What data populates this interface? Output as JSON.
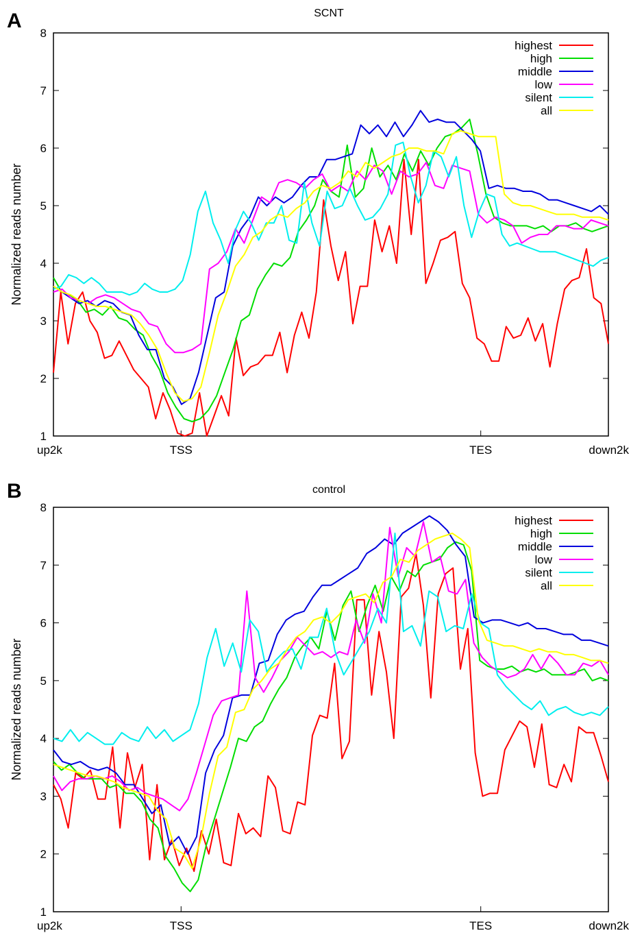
{
  "figure": {
    "panel_labels": [
      "A",
      "B"
    ]
  },
  "chart_data": [
    {
      "type": "line",
      "panel": "A",
      "title": "SCNT",
      "xlabel": "",
      "ylabel": "Normalized reads number",
      "ylim": [
        1,
        8
      ],
      "yticks": [
        1,
        2,
        3,
        4,
        5,
        6,
        7,
        8
      ],
      "xlim": [
        0,
        100
      ],
      "xticks": [
        {
          "value": 0,
          "label": "up2k"
        },
        {
          "value": 23,
          "label": "TSS"
        },
        {
          "value": 77,
          "label": "TES"
        },
        {
          "value": 100,
          "label": "down2k"
        }
      ],
      "legend_position": "top-right",
      "grid": false,
      "series": [
        {
          "name": "highest",
          "color": "#ff0000",
          "values": [
            2.1,
            3.5,
            2.6,
            3.3,
            3.5,
            3.0,
            2.8,
            2.35,
            2.4,
            2.65,
            2.4,
            2.15,
            2.0,
            1.85,
            1.3,
            1.75,
            1.45,
            1.05,
            0.95,
            1.05,
            1.75,
            0.95,
            1.35,
            1.7,
            1.35,
            2.7,
            2.05,
            2.2,
            2.25,
            2.4,
            2.4,
            2.8,
            2.1,
            2.75,
            3.15,
            2.7,
            3.5,
            5.1,
            4.3,
            3.7,
            4.2,
            2.95,
            3.6,
            3.6,
            4.75,
            4.2,
            4.65,
            4.0,
            5.8,
            4.5,
            5.8,
            3.65,
            4.0,
            4.4,
            4.45,
            4.55,
            3.65,
            3.4,
            2.7,
            2.6,
            2.3,
            2.3,
            2.9,
            2.7,
            2.75,
            3.05,
            2.65,
            2.95,
            2.2,
            2.95,
            3.55,
            3.7,
            3.75,
            4.25,
            3.4,
            3.3,
            2.6
          ]
        },
        {
          "name": "high",
          "color": "#00dd00",
          "values": [
            3.75,
            3.5,
            3.45,
            3.35,
            3.15,
            3.2,
            3.1,
            3.25,
            3.05,
            3.0,
            2.85,
            2.75,
            2.4,
            2.15,
            1.75,
            1.5,
            1.3,
            1.25,
            1.3,
            1.45,
            1.7,
            2.1,
            2.5,
            3.0,
            3.1,
            3.55,
            3.8,
            4.0,
            3.95,
            4.1,
            4.55,
            4.75,
            5.0,
            5.45,
            5.25,
            5.15,
            6.05,
            5.15,
            5.3,
            6.0,
            5.5,
            5.7,
            5.45,
            5.9,
            5.6,
            5.95,
            5.7,
            6.0,
            6.2,
            6.25,
            6.35,
            6.5,
            5.9,
            5.2,
            4.8,
            4.7,
            4.65,
            4.65,
            4.65,
            4.6,
            4.65,
            4.55,
            4.65,
            4.65,
            4.7,
            4.6,
            4.55,
            4.6,
            4.65
          ]
        },
        {
          "name": "middle",
          "color": "#0000dd",
          "values": [
            3.6,
            3.5,
            3.4,
            3.3,
            3.35,
            3.25,
            3.35,
            3.3,
            3.15,
            3.1,
            2.75,
            2.5,
            2.5,
            2.0,
            1.85,
            1.55,
            1.65,
            2.1,
            2.75,
            3.4,
            3.5,
            4.3,
            4.6,
            4.8,
            5.15,
            5.0,
            5.15,
            5.05,
            5.15,
            5.35,
            5.5,
            5.5,
            5.8,
            5.8,
            5.85,
            5.9,
            6.4,
            6.25,
            6.4,
            6.2,
            6.45,
            6.2,
            6.4,
            6.65,
            6.45,
            6.5,
            6.45,
            6.45,
            6.3,
            6.15,
            5.95,
            5.3,
            5.35,
            5.3,
            5.3,
            5.25,
            5.25,
            5.2,
            5.1,
            5.1,
            5.05,
            5.0,
            4.95,
            4.9,
            5.0,
            4.85
          ]
        },
        {
          "name": "low",
          "color": "#ff00ff",
          "values": [
            3.5,
            3.55,
            3.4,
            3.35,
            3.3,
            3.4,
            3.45,
            3.4,
            3.3,
            3.2,
            3.15,
            2.95,
            2.9,
            2.6,
            2.45,
            2.45,
            2.5,
            2.6,
            3.9,
            4.0,
            4.2,
            4.6,
            4.35,
            4.75,
            5.15,
            5.05,
            5.4,
            5.45,
            5.4,
            5.3,
            5.45,
            5.55,
            5.25,
            5.35,
            5.25,
            5.6,
            5.45,
            5.7,
            5.6,
            5.2,
            5.6,
            5.5,
            5.55,
            5.75,
            5.35,
            5.3,
            5.7,
            5.65,
            5.6,
            4.85,
            4.7,
            4.8,
            4.75,
            4.65,
            4.35,
            4.45,
            4.5,
            4.5,
            4.65,
            4.65,
            4.6,
            4.6,
            4.75,
            4.7,
            4.65
          ]
        },
        {
          "name": "silent",
          "color": "#00eeee",
          "values": [
            3.55,
            3.6,
            3.8,
            3.75,
            3.65,
            3.75,
            3.65,
            3.5,
            3.5,
            3.5,
            3.45,
            3.5,
            3.65,
            3.55,
            3.5,
            3.5,
            3.55,
            3.7,
            4.15,
            4.9,
            5.25,
            4.7,
            4.4,
            4.0,
            4.6,
            4.9,
            4.7,
            4.4,
            4.7,
            4.7,
            5.0,
            4.4,
            4.35,
            5.4,
            4.7,
            4.3,
            5.25,
            4.95,
            5.0,
            5.3,
            5.0,
            4.75,
            4.8,
            4.95,
            5.2,
            6.05,
            6.1,
            5.5,
            5.05,
            5.35,
            5.95,
            5.85,
            5.5,
            5.85,
            5.0,
            4.45,
            4.9,
            5.2,
            5.15,
            4.5,
            4.3,
            4.35,
            4.3,
            4.25,
            4.2,
            4.2,
            4.2,
            4.15,
            4.1,
            4.05,
            4.0,
            3.95,
            4.05,
            4.1
          ]
        },
        {
          "name": "all",
          "color": "#ffff00",
          "values": [
            3.6,
            3.5,
            3.45,
            3.35,
            3.3,
            3.25,
            3.25,
            3.2,
            3.15,
            3.1,
            2.95,
            2.75,
            2.5,
            2.1,
            1.75,
            1.6,
            1.65,
            1.85,
            2.45,
            3.1,
            3.5,
            3.95,
            4.15,
            4.45,
            4.55,
            4.75,
            4.85,
            4.8,
            4.95,
            5.05,
            5.25,
            5.35,
            5.3,
            5.4,
            5.6,
            5.5,
            5.75,
            5.65,
            5.75,
            5.85,
            5.9,
            6.0,
            6.0,
            5.95,
            5.95,
            5.9,
            6.25,
            6.3,
            6.25,
            6.2,
            6.2,
            6.2,
            5.2,
            5.05,
            5.0,
            5.0,
            4.95,
            4.9,
            4.85,
            4.85,
            4.85,
            4.8,
            4.8,
            4.8,
            4.75
          ]
        }
      ]
    },
    {
      "type": "line",
      "panel": "B",
      "title": "control",
      "xlabel": "",
      "ylabel": "Normalized reads number",
      "ylim": [
        1,
        8
      ],
      "yticks": [
        1,
        2,
        3,
        4,
        5,
        6,
        7,
        8
      ],
      "xlim": [
        0,
        100
      ],
      "xticks": [
        {
          "value": 0,
          "label": "up2k"
        },
        {
          "value": 23,
          "label": "TSS"
        },
        {
          "value": 77,
          "label": "TES"
        },
        {
          "value": 100,
          "label": "down2k"
        }
      ],
      "legend_position": "top-right",
      "grid": false,
      "series": [
        {
          "name": "highest",
          "color": "#ff0000",
          "values": [
            3.2,
            2.95,
            2.45,
            3.4,
            3.3,
            3.45,
            2.95,
            2.95,
            3.85,
            2.45,
            3.75,
            3.15,
            3.55,
            1.9,
            3.2,
            1.9,
            2.25,
            1.8,
            2.1,
            1.7,
            2.4,
            2.0,
            2.6,
            1.85,
            1.8,
            2.7,
            2.35,
            2.45,
            2.3,
            3.35,
            3.15,
            2.4,
            2.35,
            2.9,
            2.85,
            4.05,
            4.4,
            4.35,
            5.3,
            3.65,
            3.95,
            6.4,
            6.4,
            4.75,
            5.85,
            5.15,
            4.0,
            6.45,
            6.6,
            7.2,
            6.3,
            4.7,
            6.5,
            6.85,
            6.95,
            5.2,
            5.9,
            3.75,
            3.0,
            3.05,
            3.05,
            3.8,
            4.05,
            4.3,
            4.2,
            3.5,
            4.25,
            3.2,
            3.15,
            3.55,
            3.25,
            4.2,
            4.1,
            4.1,
            3.7,
            3.25
          ]
        },
        {
          "name": "high",
          "color": "#00dd00",
          "values": [
            3.6,
            3.45,
            3.55,
            3.4,
            3.3,
            3.3,
            3.3,
            3.15,
            3.2,
            3.05,
            3.05,
            2.9,
            2.6,
            2.45,
            1.95,
            1.75,
            1.5,
            1.35,
            1.55,
            2.15,
            2.6,
            3.05,
            3.5,
            4.0,
            3.95,
            4.2,
            4.3,
            4.6,
            4.85,
            5.05,
            5.4,
            5.6,
            5.75,
            5.55,
            6.2,
            5.7,
            6.3,
            6.55,
            5.85,
            6.3,
            6.65,
            6.2,
            6.8,
            6.55,
            6.9,
            6.8,
            7.0,
            7.05,
            7.1,
            7.3,
            7.4,
            7.35,
            6.9,
            5.35,
            5.25,
            5.2,
            5.2,
            5.25,
            5.15,
            5.2,
            5.15,
            5.2,
            5.1,
            5.1,
            5.1,
            5.15,
            5.2,
            5.0,
            5.05,
            5.0
          ]
        },
        {
          "name": "middle",
          "color": "#0000dd",
          "values": [
            3.8,
            3.6,
            3.55,
            3.6,
            3.5,
            3.45,
            3.5,
            3.4,
            3.2,
            3.2,
            2.95,
            2.7,
            2.85,
            2.15,
            2.3,
            2.0,
            2.3,
            3.4,
            3.8,
            4.05,
            4.7,
            4.75,
            4.75,
            5.3,
            5.35,
            5.8,
            6.05,
            6.15,
            6.2,
            6.45,
            6.65,
            6.65,
            6.75,
            6.85,
            6.95,
            7.2,
            7.3,
            7.45,
            7.35,
            7.55,
            7.65,
            7.75,
            7.85,
            7.75,
            7.6,
            7.35,
            7.15,
            6.1,
            6.0,
            6.05,
            6.05,
            6.0,
            5.95,
            6.0,
            5.9,
            5.9,
            5.85,
            5.8,
            5.8,
            5.7,
            5.7,
            5.65,
            5.6
          ]
        },
        {
          "name": "low",
          "color": "#ff00ff",
          "values": [
            3.35,
            3.1,
            3.25,
            3.3,
            3.3,
            3.35,
            3.3,
            3.35,
            3.25,
            3.1,
            3.15,
            3.05,
            3.0,
            2.95,
            2.85,
            2.75,
            2.95,
            3.4,
            3.9,
            4.4,
            4.65,
            4.7,
            4.75,
            6.55,
            5.05,
            4.8,
            5.05,
            5.35,
            5.5,
            5.75,
            5.6,
            5.45,
            5.5,
            5.4,
            5.5,
            5.45,
            6.05,
            5.65,
            6.5,
            6.0,
            7.65,
            6.8,
            7.3,
            7.15,
            7.75,
            7.05,
            7.15,
            6.55,
            6.5,
            6.75,
            5.65,
            5.4,
            5.25,
            5.15,
            5.05,
            5.1,
            5.2,
            5.45,
            5.2,
            5.45,
            5.3,
            5.1,
            5.1,
            5.3,
            5.25,
            5.35,
            5.1
          ]
        },
        {
          "name": "silent",
          "color": "#00eeee",
          "values": [
            4.0,
            3.95,
            4.15,
            3.95,
            4.1,
            4.0,
            3.9,
            3.9,
            4.1,
            4.0,
            3.95,
            4.2,
            4.0,
            4.15,
            3.95,
            4.05,
            4.15,
            4.6,
            5.4,
            5.9,
            5.25,
            5.65,
            5.15,
            6.05,
            5.85,
            5.15,
            5.35,
            5.5,
            5.55,
            5.2,
            5.75,
            5.75,
            6.25,
            5.5,
            5.1,
            5.35,
            5.6,
            5.85,
            6.25,
            6.0,
            7.55,
            5.85,
            5.95,
            5.6,
            6.55,
            6.45,
            5.85,
            5.95,
            5.9,
            6.5,
            6.0,
            5.9,
            5.1,
            4.9,
            4.75,
            4.6,
            4.5,
            4.65,
            4.4,
            4.5,
            4.55,
            4.45,
            4.4,
            4.45,
            4.4,
            4.55
          ]
        },
        {
          "name": "all",
          "color": "#ffff00",
          "values": [
            3.55,
            3.5,
            3.45,
            3.4,
            3.35,
            3.35,
            3.3,
            3.25,
            3.15,
            3.1,
            3.05,
            3.0,
            2.75,
            2.6,
            2.1,
            2.0,
            1.75,
            2.25,
            3.05,
            3.7,
            3.85,
            4.45,
            4.5,
            4.85,
            5.0,
            5.2,
            5.3,
            5.55,
            5.75,
            5.85,
            6.05,
            6.1,
            6.0,
            6.15,
            6.4,
            6.45,
            6.5,
            6.35,
            6.7,
            6.8,
            7.1,
            7.05,
            7.25,
            7.35,
            7.45,
            7.5,
            7.55,
            7.45,
            7.3,
            6.05,
            5.7,
            5.65,
            5.6,
            5.6,
            5.55,
            5.5,
            5.55,
            5.5,
            5.5,
            5.45,
            5.45,
            5.4,
            5.35,
            5.35,
            5.3
          ]
        }
      ]
    }
  ]
}
